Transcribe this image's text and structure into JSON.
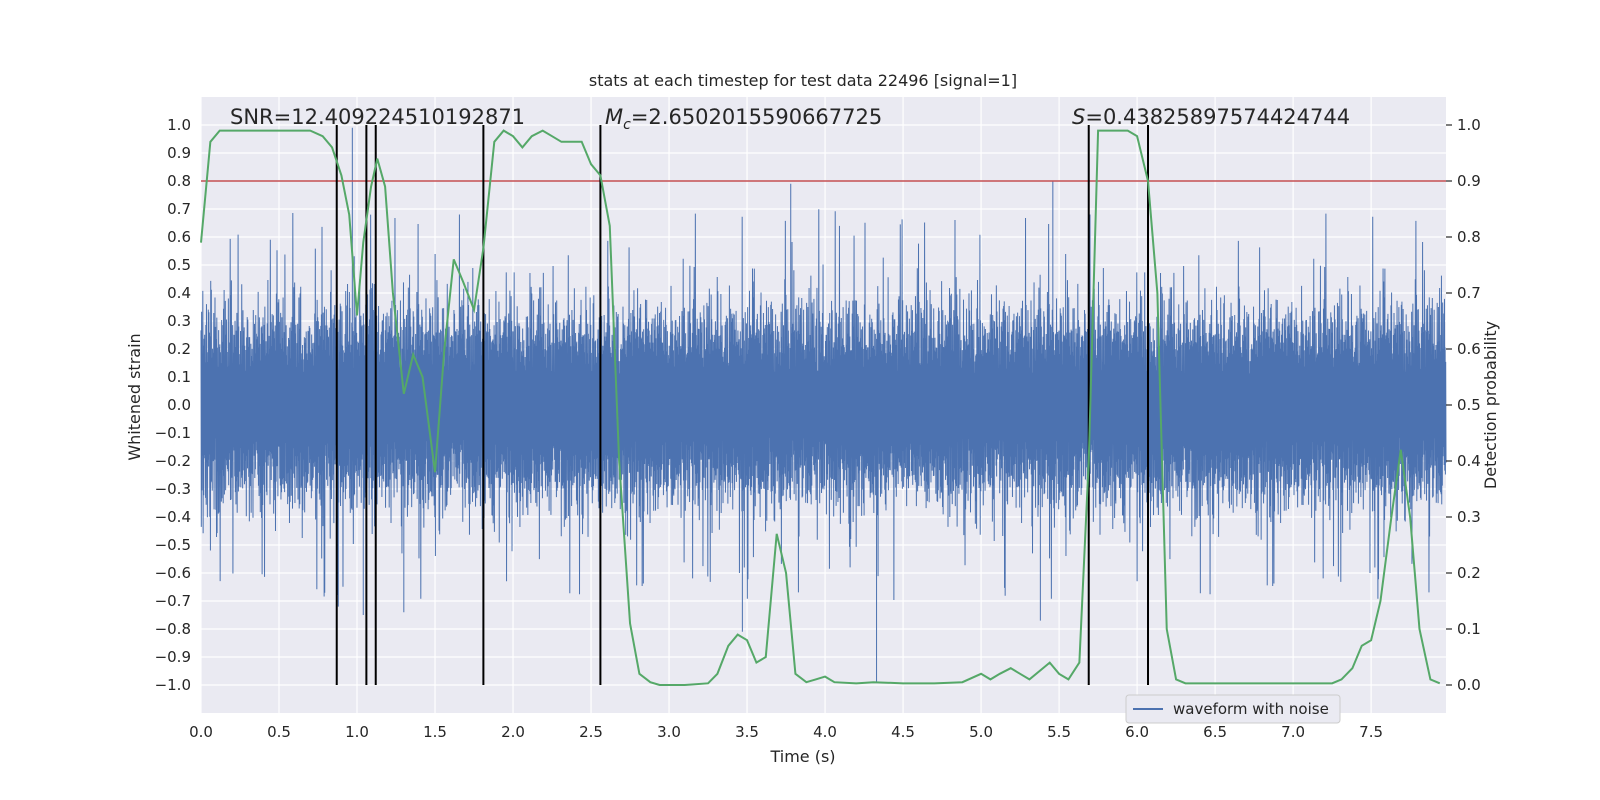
{
  "chart_data": {
    "type": "line",
    "title": "stats at each timestep for test data 22496 [signal=1]",
    "xlabel": "Time (s)",
    "ylabel_left": "Whitened strain",
    "ylabel_right": "Detection probability",
    "xlim": [
      0.0,
      7.98
    ],
    "ylim_left": [
      -1.1,
      1.1
    ],
    "ylim_right": [
      -0.05,
      1.05
    ],
    "x_ticks": [
      "0.0",
      "0.5",
      "1.0",
      "1.5",
      "2.0",
      "2.5",
      "3.0",
      "3.5",
      "4.0",
      "4.5",
      "5.0",
      "5.5",
      "6.0",
      "6.5",
      "7.0",
      "7.5"
    ],
    "y_ticks_left": [
      "1.0",
      "0.9",
      "0.8",
      "0.7",
      "0.6",
      "0.5",
      "0.4",
      "0.3",
      "0.2",
      "0.1",
      "0.0",
      "−0.1",
      "−0.2",
      "−0.3",
      "−0.4",
      "−0.5",
      "−0.6",
      "−0.7",
      "−0.8",
      "−0.9",
      "−1.0"
    ],
    "y_ticks_right": [
      "1.0",
      "0.9",
      "0.8",
      "0.7",
      "0.6",
      "0.5",
      "0.4",
      "0.3",
      "0.2",
      "0.1",
      "0.0"
    ],
    "grid": true,
    "legend": {
      "placement": "bottom-right",
      "entries": [
        "waveform with noise"
      ]
    },
    "annotations": {
      "snr": "SNR=12.409224510192871",
      "mc_symbol": "M",
      "mc_sub": "c",
      "mc_value": "=2.6502015590667725",
      "s_symbol": "S",
      "s_value": "=0.43825897574424744"
    },
    "threshold_line": {
      "y_right": 0.9,
      "color": "#c44e52"
    },
    "vertical_lines": [
      0.87,
      1.06,
      1.12,
      1.81,
      2.56,
      5.69,
      6.07
    ],
    "colors": {
      "waveform": "#4c72b0",
      "probability": "#55a868",
      "threshold": "#c44e52",
      "vlines": "#000000",
      "axes_bg": "#eaeaf2",
      "grid": "#ffffff"
    },
    "series": [
      {
        "name": "waveform with noise",
        "axis": "left",
        "style": "dense noise, amplitude about ±0.35 with spikes up to about ±0.8",
        "spikes": [
          [
            0.97,
            0.99
          ],
          [
            4.33,
            -0.99
          ],
          [
            5.46,
            0.8
          ],
          [
            3.47,
            -0.81
          ],
          [
            1.3,
            -0.74
          ],
          [
            0.88,
            -0.72
          ],
          [
            1.04,
            -0.75
          ],
          [
            3.78,
            0.79
          ],
          [
            5.38,
            -0.77
          ]
        ]
      },
      {
        "name": "",
        "axis": "right",
        "x": [
          0.0,
          0.06,
          0.12,
          0.2,
          0.3,
          0.4,
          0.5,
          0.6,
          0.7,
          0.78,
          0.84,
          0.9,
          0.95,
          1.0,
          1.04,
          1.09,
          1.13,
          1.18,
          1.23,
          1.3,
          1.36,
          1.42,
          1.5,
          1.56,
          1.62,
          1.68,
          1.75,
          1.81,
          1.88,
          1.94,
          2.0,
          2.06,
          2.12,
          2.19,
          2.25,
          2.31,
          2.37,
          2.44,
          2.5,
          2.56,
          2.62,
          2.68,
          2.75,
          2.81,
          2.88,
          2.94,
          3.0,
          3.1,
          3.25,
          3.31,
          3.38,
          3.44,
          3.5,
          3.56,
          3.62,
          3.69,
          3.75,
          3.81,
          3.88,
          3.94,
          4.0,
          4.06,
          4.2,
          4.31,
          4.5,
          4.7,
          4.88,
          5.0,
          5.06,
          5.12,
          5.19,
          5.25,
          5.31,
          5.44,
          5.5,
          5.56,
          5.63,
          5.69,
          5.75,
          5.81,
          5.88,
          5.94,
          6.0,
          6.07,
          6.13,
          6.19,
          6.25,
          6.31,
          6.5,
          6.75,
          7.0,
          7.25,
          7.31,
          7.38,
          7.44,
          7.5,
          7.56,
          7.63,
          7.69,
          7.75,
          7.81,
          7.88,
          7.94
        ],
        "values": [
          0.79,
          0.97,
          0.99,
          0.99,
          0.99,
          0.99,
          0.99,
          0.99,
          0.99,
          0.98,
          0.96,
          0.91,
          0.84,
          0.66,
          0.79,
          0.89,
          0.94,
          0.89,
          0.7,
          0.52,
          0.59,
          0.55,
          0.38,
          0.6,
          0.76,
          0.72,
          0.67,
          0.78,
          0.97,
          0.99,
          0.98,
          0.96,
          0.98,
          0.99,
          0.98,
          0.97,
          0.97,
          0.97,
          0.93,
          0.91,
          0.82,
          0.4,
          0.11,
          0.02,
          0.005,
          0.0,
          0.0,
          0.0,
          0.003,
          0.02,
          0.07,
          0.09,
          0.08,
          0.04,
          0.05,
          0.27,
          0.2,
          0.02,
          0.005,
          0.01,
          0.015,
          0.005,
          0.003,
          0.005,
          0.003,
          0.003,
          0.005,
          0.02,
          0.01,
          0.02,
          0.03,
          0.02,
          0.01,
          0.04,
          0.02,
          0.01,
          0.04,
          0.4,
          0.99,
          0.99,
          0.99,
          0.99,
          0.98,
          0.9,
          0.7,
          0.1,
          0.01,
          0.003,
          0.003,
          0.003,
          0.003,
          0.003,
          0.01,
          0.03,
          0.07,
          0.08,
          0.15,
          0.3,
          0.42,
          0.3,
          0.1,
          0.01,
          0.003
        ]
      }
    ]
  }
}
